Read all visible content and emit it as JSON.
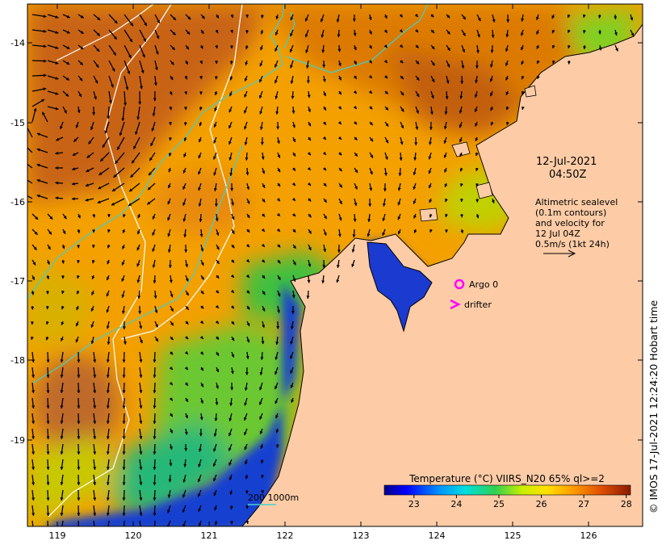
{
  "annotations": {
    "date": "12-Jul-2021",
    "time": "04:50Z",
    "altimetry_lines": [
      "Altimetric sealevel",
      "(0.1m contours)",
      "and velocity for",
      "12 Jul 04Z",
      "0.5m/s (1kt 24h)"
    ],
    "argo_label": "Argo 0",
    "drifter_label": "drifter",
    "bathymetry_label": "200  1000m"
  },
  "credit": "© IMOS 17-Jul-2021 12:24:20 Hobart time",
  "colorbar": {
    "title": "Temperature (°C) VIIRS_N20 65% ql>=2",
    "ticks": [
      "23",
      "24",
      "25",
      "26",
      "27",
      "28"
    ],
    "min": 22.3,
    "max": 28.1
  },
  "axes": {
    "x_ticks": [
      "119",
      "120",
      "121",
      "122",
      "123",
      "124",
      "125",
      "126"
    ],
    "y_ticks": [
      "-14",
      "-15",
      "-16",
      "-17",
      "-18",
      "-19"
    ]
  },
  "colors": {
    "land": "#fdcca6",
    "argo": "#ff00ff",
    "drifter": "#ff00ff",
    "isobath_200": "#40d0d0",
    "isobath_1000": "#ffffff",
    "coast": "#000000"
  },
  "icons": {
    "argo": "argo-float-circle-icon",
    "drifter": "drifter-chevron-icon",
    "velocity_scale": "velocity-scale-arrow-icon"
  }
}
